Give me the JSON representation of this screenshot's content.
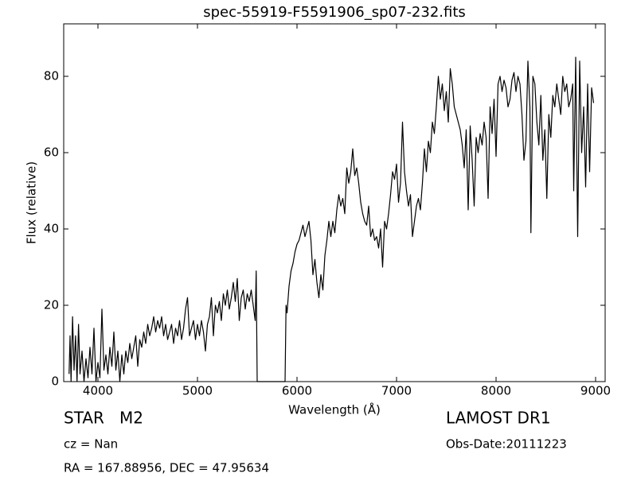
{
  "chart_data": {
    "type": "line",
    "title": "spec-55919-F5591906_sp07-232.fits",
    "x_label": "Wavelength (Å)",
    "y_label": "Flux (relative)",
    "object_label": "STAR   M2",
    "redshift_text": "cz = Nan",
    "coordinates_text": "RA = 167.88956, DEC = 47.95634",
    "survey_text": "LAMOST DR1",
    "obs_date_text": "Obs-Date:20111223",
    "color": "#000000",
    "grid": false,
    "xlim": [
      3656,
      9096
    ],
    "ylim": [
      0,
      93.75
    ],
    "xticks": [
      4000,
      5000,
      6000,
      7000,
      8000,
      9000
    ],
    "yticks": [
      0,
      20,
      40,
      60,
      80
    ],
    "x": [
      3710,
      3720,
      3730,
      3745,
      3760,
      3775,
      3790,
      3805,
      3820,
      3840,
      3860,
      3880,
      3900,
      3920,
      3940,
      3960,
      3980,
      4000,
      4020,
      4040,
      4060,
      4080,
      4100,
      4120,
      4140,
      4160,
      4180,
      4200,
      4220,
      4240,
      4260,
      4280,
      4300,
      4320,
      4340,
      4360,
      4380,
      4400,
      4420,
      4440,
      4460,
      4480,
      4500,
      4520,
      4540,
      4560,
      4580,
      4600,
      4620,
      4640,
      4660,
      4680,
      4700,
      4720,
      4740,
      4760,
      4780,
      4800,
      4820,
      4840,
      4860,
      4880,
      4900,
      4920,
      4940,
      4960,
      4980,
      5000,
      5020,
      5040,
      5060,
      5080,
      5100,
      5120,
      5140,
      5160,
      5180,
      5200,
      5220,
      5240,
      5260,
      5280,
      5300,
      5320,
      5340,
      5360,
      5380,
      5400,
      5420,
      5440,
      5460,
      5480,
      5500,
      5520,
      5540,
      5560,
      5580,
      5590,
      5600,
      5700,
      5800,
      5880,
      5890,
      5900,
      5920,
      5940,
      5960,
      5980,
      6000,
      6020,
      6040,
      6060,
      6080,
      6100,
      6120,
      6140,
      6160,
      6180,
      6200,
      6220,
      6240,
      6260,
      6280,
      6300,
      6320,
      6340,
      6360,
      6380,
      6400,
      6420,
      6440,
      6460,
      6480,
      6500,
      6520,
      6540,
      6560,
      6580,
      6600,
      6620,
      6640,
      6660,
      6680,
      6700,
      6720,
      6740,
      6760,
      6780,
      6800,
      6820,
      6840,
      6860,
      6880,
      6900,
      6920,
      6940,
      6960,
      6980,
      7000,
      7020,
      7040,
      7060,
      7080,
      7100,
      7120,
      7140,
      7160,
      7180,
      7200,
      7220,
      7240,
      7260,
      7280,
      7300,
      7320,
      7340,
      7360,
      7380,
      7400,
      7420,
      7440,
      7460,
      7480,
      7500,
      7520,
      7540,
      7560,
      7580,
      7600,
      7620,
      7640,
      7660,
      7680,
      7700,
      7720,
      7740,
      7760,
      7780,
      7800,
      7820,
      7840,
      7860,
      7880,
      7900,
      7920,
      7940,
      7960,
      7980,
      8000,
      8020,
      8040,
      8060,
      8080,
      8100,
      8120,
      8140,
      8160,
      8180,
      8200,
      8220,
      8240,
      8260,
      8280,
      8300,
      8320,
      8340,
      8350,
      8370,
      8390,
      8410,
      8430,
      8450,
      8470,
      8490,
      8510,
      8530,
      8550,
      8570,
      8590,
      8610,
      8630,
      8650,
      8670,
      8690,
      8710,
      8730,
      8750,
      8770,
      8780,
      8800,
      8820,
      8840,
      8860,
      8880,
      8900,
      8920,
      8940,
      8960,
      8980
    ],
    "values": [
      2,
      12,
      0,
      17,
      3,
      12,
      0,
      15,
      2,
      8,
      0,
      6,
      1,
      9,
      2,
      14,
      0,
      5,
      1,
      19,
      3,
      7,
      2,
      9,
      4,
      13,
      3,
      8,
      0,
      7,
      2,
      8,
      5,
      10,
      6,
      9,
      12,
      4,
      11,
      9,
      13,
      10,
      15,
      12,
      14,
      17,
      13,
      16,
      14,
      17,
      12,
      15,
      11,
      13,
      15,
      10,
      14,
      12,
      16,
      11,
      14,
      19,
      22,
      12,
      14,
      16,
      11,
      15,
      12,
      16,
      13,
      8,
      15,
      17,
      22,
      12,
      20,
      18,
      21,
      16,
      23,
      20,
      24,
      19,
      22,
      26,
      21,
      27,
      16,
      22,
      24,
      19,
      23,
      21,
      24,
      20,
      16,
      29,
      0,
      0,
      0,
      0,
      20,
      18,
      25,
      29,
      31,
      34,
      36,
      37,
      39,
      41,
      38,
      40,
      42,
      37,
      28,
      32,
      26,
      22,
      28,
      24,
      33,
      37,
      42,
      38,
      42,
      39,
      45,
      49,
      46,
      48,
      44,
      56,
      52,
      55,
      61,
      54,
      56,
      52,
      47,
      44,
      42,
      41,
      46,
      38,
      40,
      37,
      38,
      35,
      40,
      30,
      42,
      40,
      44,
      49,
      55,
      53,
      57,
      47,
      52,
      68,
      55,
      50,
      46,
      49,
      38,
      42,
      46,
      48,
      45,
      52,
      61,
      55,
      63,
      60,
      68,
      65,
      72,
      80,
      74,
      78,
      71,
      76,
      68,
      82,
      78,
      72,
      70,
      68,
      66,
      62,
      56,
      66,
      45,
      67,
      58,
      46,
      64,
      60,
      65,
      62,
      68,
      64,
      48,
      72,
      65,
      74,
      59,
      78,
      80,
      76,
      79,
      77,
      72,
      74,
      79,
      81,
      76,
      80,
      78,
      70,
      58,
      63,
      84,
      72,
      39,
      80,
      78,
      68,
      62,
      75,
      58,
      66,
      48,
      70,
      64,
      75,
      72,
      78,
      74,
      70,
      80,
      76,
      78,
      72,
      74,
      78,
      50,
      85,
      38,
      84,
      60,
      72,
      51,
      78,
      55,
      77,
      73
    ]
  }
}
